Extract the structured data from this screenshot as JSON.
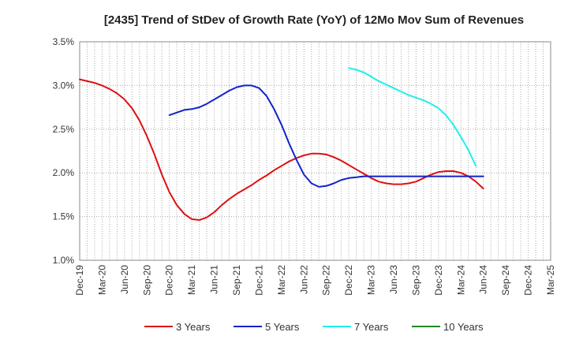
{
  "chart_data": {
    "type": "line",
    "title": "[2435]  Trend of StDev of Growth Rate (YoY) of 12Mo Mov Sum of Revenues",
    "xlabel": "",
    "ylabel": "",
    "ylim": [
      1.0,
      3.5
    ],
    "y_ticks": [
      "1.0%",
      "1.5%",
      "2.0%",
      "2.5%",
      "3.0%",
      "3.5%"
    ],
    "y_tick_values": [
      1.0,
      1.5,
      2.0,
      2.5,
      3.0,
      3.5
    ],
    "x_ticks": [
      "Dec-19",
      "Mar-20",
      "Jun-20",
      "Sep-20",
      "Dec-20",
      "Mar-21",
      "Jun-21",
      "Sep-21",
      "Dec-21",
      "Mar-22",
      "Jun-22",
      "Sep-22",
      "Dec-22",
      "Mar-23",
      "Jun-23",
      "Sep-23",
      "Dec-23",
      "Mar-24",
      "Jun-24",
      "Sep-24",
      "Dec-24",
      "Mar-25"
    ],
    "grid": true,
    "legend_position": "bottom",
    "series": [
      {
        "name": "3 Years",
        "color": "#dd1111",
        "start_index": 0,
        "values": [
          3.07,
          3.05,
          3.03,
          3.0,
          2.96,
          2.91,
          2.84,
          2.74,
          2.6,
          2.42,
          2.21,
          1.98,
          1.78,
          1.63,
          1.53,
          1.47,
          1.46,
          1.49,
          1.55,
          1.63,
          1.7,
          1.76,
          1.81,
          1.86,
          1.92,
          1.97,
          2.03,
          2.08,
          2.13,
          2.17,
          2.2,
          2.22,
          2.22,
          2.21,
          2.18,
          2.14,
          2.09,
          2.04,
          1.99,
          1.94,
          1.9,
          1.88,
          1.87,
          1.87,
          1.88,
          1.9,
          1.94,
          1.98,
          2.01,
          2.02,
          2.02,
          2.0,
          1.96,
          1.9,
          1.82
        ]
      },
      {
        "name": "5 Years",
        "color": "#1122cc",
        "start_index": 12,
        "values": [
          2.66,
          2.69,
          2.72,
          2.73,
          2.75,
          2.79,
          2.84,
          2.89,
          2.94,
          2.98,
          3.0,
          3.0,
          2.97,
          2.88,
          2.73,
          2.55,
          2.34,
          2.15,
          1.98,
          1.88,
          1.84,
          1.85,
          1.88,
          1.92,
          1.94,
          1.95,
          1.96,
          1.96,
          1.96,
          1.96,
          1.96,
          1.96,
          1.96,
          1.96,
          1.96,
          1.96,
          1.96,
          1.96,
          1.96,
          1.96,
          1.96,
          1.96,
          1.96
        ]
      },
      {
        "name": "7 Years",
        "color": "#22eeee",
        "start_index": 36,
        "values": [
          3.2,
          3.18,
          3.15,
          3.1,
          3.05,
          3.01,
          2.97,
          2.93,
          2.89,
          2.86,
          2.83,
          2.79,
          2.74,
          2.66,
          2.55,
          2.41,
          2.26,
          2.08
        ]
      },
      {
        "name": "10 Years",
        "color": "#228822",
        "start_index": 0,
        "values": []
      }
    ]
  }
}
